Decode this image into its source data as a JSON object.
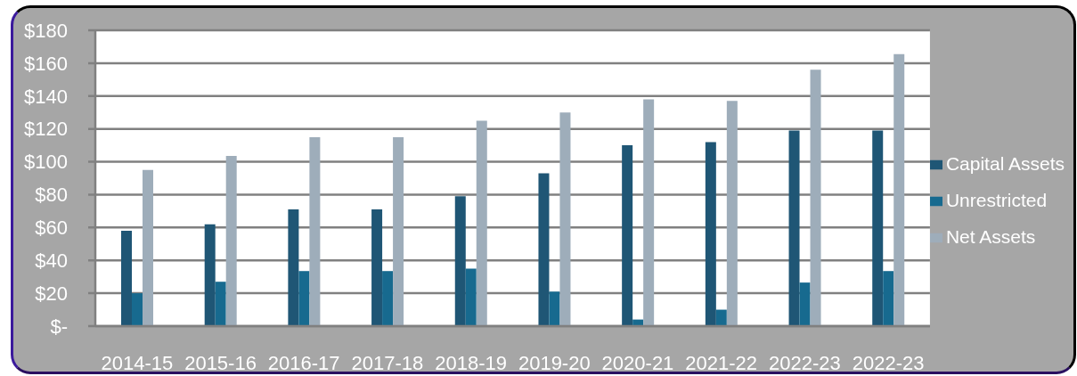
{
  "chart_data": {
    "type": "bar",
    "categories": [
      "2014-15",
      "2015-16",
      "2016-17",
      "2017-18",
      "2018-19",
      "2019-20",
      "2020-21",
      "2021-22",
      "2022-23",
      "2022-23"
    ],
    "series": [
      {
        "name": "Capital Assets",
        "color": "#1f5675",
        "values": [
          58,
          62,
          71,
          71,
          79,
          93,
          110,
          112,
          119,
          119
        ]
      },
      {
        "name": "Unrestricted",
        "color": "#176a8f",
        "values": [
          20,
          27,
          33.5,
          33.5,
          35,
          21,
          4,
          10,
          26.5,
          33.5
        ]
      },
      {
        "name": "Net Assets",
        "color": "#9eadba",
        "values": [
          95,
          103.5,
          115,
          115,
          125,
          130,
          138,
          137,
          156,
          165.5
        ]
      }
    ],
    "ylim": [
      0,
      180
    ],
    "yticks": [
      {
        "value": 0,
        "label": "$-"
      },
      {
        "value": 20,
        "label": "$20"
      },
      {
        "value": 40,
        "label": "$40"
      },
      {
        "value": 60,
        "label": "$60"
      },
      {
        "value": 80,
        "label": "$80"
      },
      {
        "value": 100,
        "label": "$100"
      },
      {
        "value": 120,
        "label": "$120"
      },
      {
        "value": 140,
        "label": "$140"
      },
      {
        "value": 160,
        "label": "$160"
      },
      {
        "value": 180,
        "label": "$180"
      }
    ],
    "grid": "y",
    "legend": "right"
  }
}
